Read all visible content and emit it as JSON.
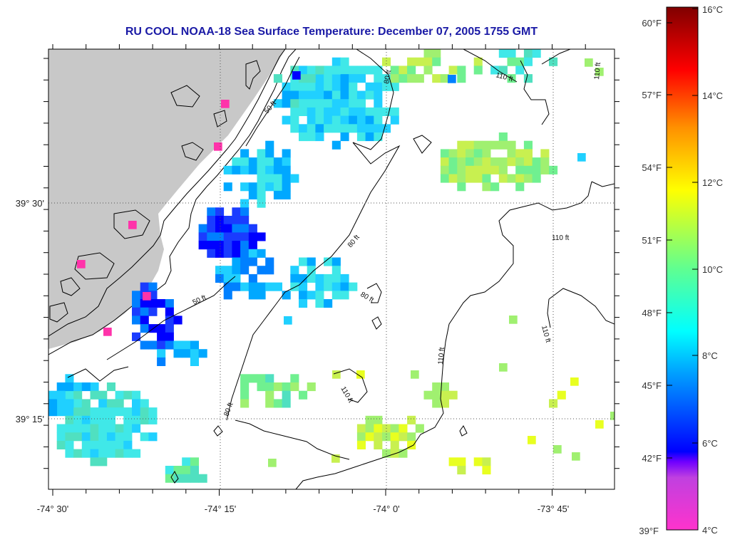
{
  "title": "RU COOL  NOAA-18  Sea Surface Temperature:  December 07, 2005 1755 GMT",
  "x_ticks": [
    "-74° 30'",
    "-74° 15'",
    "-74° 0'",
    "-73° 45'"
  ],
  "y_ticks": [
    "39° 30'",
    "39° 15'"
  ],
  "contour_labels": [
    "50 ft",
    "50 ft",
    "80 ft",
    "80 ft",
    "80 ft",
    "80 ft",
    "110 ft",
    "110 ft",
    "110 ft",
    "110 ft",
    "110 ft",
    "110 ft"
  ],
  "colorbar": {
    "fahrenheit": [
      "60°F",
      "57°F",
      "54°F",
      "51°F",
      "48°F",
      "45°F",
      "42°F",
      "39°F"
    ],
    "celsius": [
      "16°C",
      "14°C",
      "12°C",
      "10°C",
      "8°C",
      "6°C",
      "4°C"
    ],
    "colors": [
      "#ff33cc",
      "#8000ff",
      "#0000ff",
      "#00b0ff",
      "#00ffff",
      "#80ff80",
      "#ffff00",
      "#ff8000",
      "#ff0000",
      "#800000"
    ]
  },
  "colors": {
    "land": "#c8c8c8",
    "title": "#1a1aa6",
    "frame": "#000000"
  }
}
